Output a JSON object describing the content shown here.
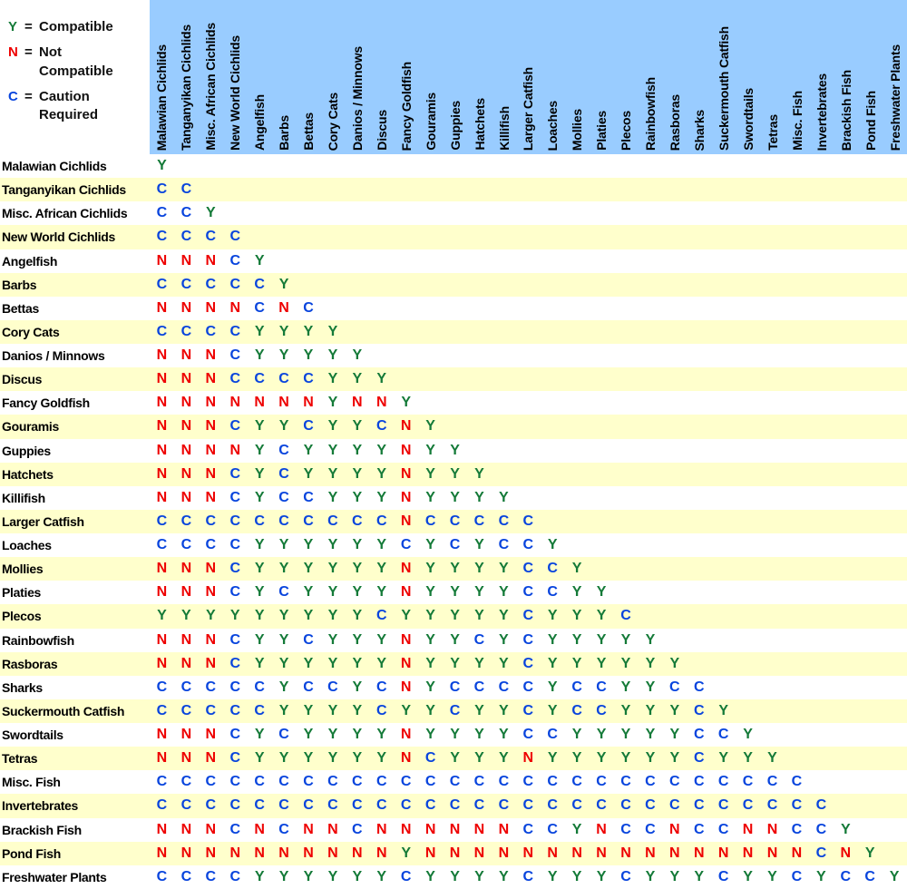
{
  "legend": {
    "items": [
      {
        "symbol": "Y",
        "text": "Compatible"
      },
      {
        "symbol": "N",
        "text": "Not\nCompatible"
      },
      {
        "symbol": "C",
        "text": "Caution\nRequired"
      }
    ]
  },
  "colors": {
    "header_background": "#99CCFF",
    "stripe_yellow": "#FFFFCC",
    "row_white": "#FFFFFF",
    "label_text": "#000000"
  },
  "chart_data": {
    "type": "table",
    "title": "Fish Compatibility Chart",
    "value_meanings": {
      "Y": "Compatible",
      "N": "Not Compatible",
      "C": "Caution Required"
    },
    "value_colors": {
      "Y": "#147A38",
      "N": "#EE0000",
      "C": "#0844DD"
    },
    "col_labels": [
      "Malawian Cichlids",
      "Tanganyikan Cichlids",
      "Misc. African Cichlids",
      "New World Cichlids",
      "Angelfish",
      "Barbs",
      "Bettas",
      "Cory Cats",
      "Danios / Minnows",
      "Discus",
      "Fancy Goldfish",
      "Gouramis",
      "Guppies",
      "Hatchets",
      "Killifish",
      "Larger Catfish",
      "Loaches",
      "Mollies",
      "Platies",
      "Plecos",
      "Rainbowfish",
      "Rasboras",
      "Sharks",
      "Suckermouth Catfish",
      "Swordtails",
      "Tetras",
      "Misc. Fish",
      "Invertebrates",
      "Brackish Fish",
      "Pond Fish",
      "Freshwater Plants"
    ],
    "row_labels": [
      "Malawian Cichlids",
      "Tanganyikan Cichlids",
      "Misc. African Cichlids",
      "New World Cichlids",
      "Angelfish",
      "Barbs",
      "Bettas",
      "Cory Cats",
      "Danios / Minnows",
      "Discus",
      "Fancy Goldfish",
      "Gouramis",
      "Guppies",
      "Hatchets",
      "Killifish",
      "Larger Catfish",
      "Loaches",
      "Mollies",
      "Platies",
      "Plecos",
      "Rainbowfish",
      "Rasboras",
      "Sharks",
      "Suckermouth Catfish",
      "Swordtails",
      "Tetras",
      "Misc. Fish",
      "Invertebrates",
      "Brackish Fish",
      "Pond Fish",
      "Freshwater Plants"
    ],
    "cell_values": [
      "Y",
      "CC",
      "CCY",
      "CCCC",
      "NNNCY",
      "CCCCCY",
      "NNNNCNC",
      "CCCCYYYY",
      "NNNCYYYYY",
      "NNNCCCCYYY",
      "NNNNNNNYNNY",
      "NNNCYYCYYCNY",
      "NNNNYCYYYYNYY",
      "NNNCYCYYYYNYYY",
      "NNNCYCCYYYNYYYY",
      "CCCCCCCCCCNCCCCC",
      "CCCCYYYYYYCYCYCCY",
      "NNNCYYYYYYNYYYYCCY",
      "NNNCYCYYYYNYYYYCCYY",
      "YYYYYYYYYCYYYYYCYYYC",
      "NNNCYYCYYYNYYCYCYYYYY",
      "NNNCYYYYYYNYYYYCYYYYYY",
      "CCCCCYCCYCNYCCCCYCCYYCC",
      "CCCCCYYYYCYYCYYCYCCYYYCY",
      "NNNCYCYYYYNYYYYCCYYYYYCCY",
      "NNNCYYYYYYNCYYYNYYYYYYCYYY",
      "CCCCCCCCCCCCCCCCCCCCCCCCCCC",
      "CCCCCCCCCCCCCCCCCCCCCCCCCCCC",
      "NNNCNCNNCNNNNNNCCYNCCNCCNNCCY",
      "NNNNNNNNNNYNNNNNNNNNNNNNNNNCNY",
      "CCCCYYYYYYCYYYYCYYYCYYYCYYCYCCY"
    ]
  }
}
